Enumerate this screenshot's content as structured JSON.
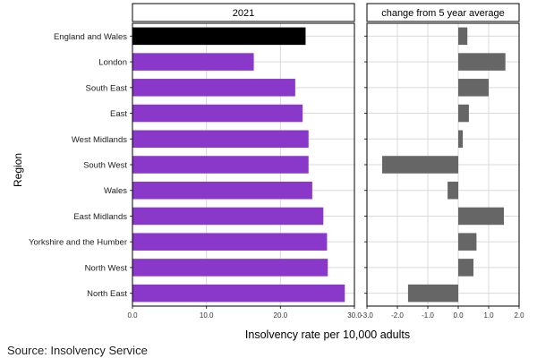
{
  "chart_data": {
    "type": "bar",
    "orientation": "horizontal",
    "ylabel": "Region",
    "xlabel": "Insolvency rate per 10,000 adults",
    "categories": [
      "England and Wales",
      "London",
      "South East",
      "East",
      "West Midlands",
      "South West",
      "Wales",
      "East Midlands",
      "Yorkshire and the Humber",
      "North West",
      "North East"
    ],
    "panels": [
      {
        "title": "2021",
        "values": [
          23.4,
          16.4,
          22.0,
          23.0,
          23.8,
          23.8,
          24.3,
          25.8,
          26.3,
          26.4,
          28.7
        ],
        "xlim": [
          0,
          30
        ],
        "ticks": [
          0,
          10,
          20,
          30
        ],
        "tick_labels": [
          "0.0",
          "10.0",
          "20.0",
          "30.0"
        ]
      },
      {
        "title": "change from 5 year average",
        "values": [
          0.3,
          1.55,
          1.0,
          0.35,
          0.15,
          -2.5,
          -0.35,
          1.5,
          0.6,
          0.5,
          -1.65
        ],
        "xlim": [
          -3,
          2
        ],
        "ticks": [
          -3,
          -2,
          -1,
          0,
          1,
          2
        ],
        "tick_labels": [
          "-3.0",
          "-2.0",
          "-1.0",
          "0.0",
          "1.0",
          "2.0"
        ]
      }
    ],
    "colors": {
      "highlight": "#000000",
      "region": "#8a38c9",
      "change": "#666666",
      "grid": "#d9d9d9"
    },
    "highlight_category": "England and Wales"
  },
  "source": "Source: Insolvency Service"
}
